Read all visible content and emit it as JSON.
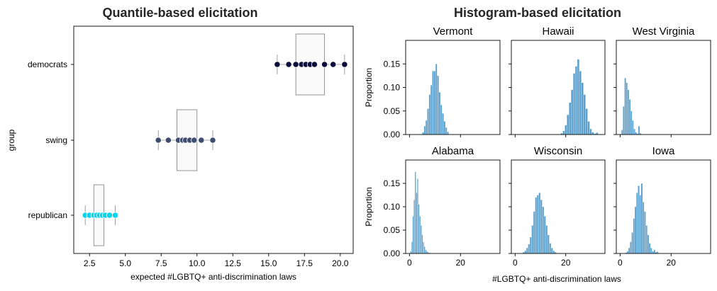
{
  "chart_data": [
    {
      "type": "box",
      "title": "Quantile-based elicitation",
      "xlabel": "expected #LGBTQ+ anti-discrimination laws",
      "ylabel": "group",
      "xlim": [
        1.4,
        20.9
      ],
      "xticks": [
        "2.5",
        "5.0",
        "7.5",
        "10.0",
        "12.5",
        "15.0",
        "17.5",
        "20.0"
      ],
      "xtick_values": [
        2.5,
        5.0,
        7.5,
        10.0,
        12.5,
        15.0,
        17.5,
        20.0
      ],
      "categories": [
        "democrats",
        "swing",
        "republican"
      ],
      "groups": [
        {
          "name": "democrats",
          "whisker_low": 15.6,
          "q1": 16.9,
          "q3": 18.9,
          "whisker_high": 20.3,
          "points": [
            15.6,
            16.4,
            16.9,
            17.3,
            17.6,
            17.9,
            18.2,
            18.9,
            19.5,
            20.3
          ],
          "color": "#0d0d3b"
        },
        {
          "name": "swing",
          "whisker_low": 7.3,
          "q1": 8.6,
          "q3": 10.0,
          "whisker_high": 11.1,
          "points": [
            7.3,
            8.0,
            8.7,
            9.0,
            9.2,
            9.5,
            9.8,
            10.3,
            11.1
          ],
          "color": "#3f4e6e"
        },
        {
          "name": "republican",
          "whisker_low": 2.2,
          "q1": 2.8,
          "q3": 3.5,
          "whisker_high": 4.3,
          "points": [
            2.2,
            2.5,
            2.8,
            3.0,
            3.2,
            3.4,
            3.6,
            3.9,
            4.3
          ],
          "color": "#00d7ef"
        }
      ]
    },
    {
      "type": "histogram",
      "title": "Histogram-based elicitation",
      "xlabel": "#LGBTQ+ anti-discrimination laws",
      "ylabel": "Proportion",
      "xlim": [
        -1.5,
        35.5
      ],
      "ylim": [
        0,
        0.2
      ],
      "xticks": [
        "0",
        "20"
      ],
      "xtick_values": [
        0,
        20
      ],
      "yticks": [
        "0.00",
        "0.05",
        "0.10",
        "0.15"
      ],
      "ytick_values": [
        0,
        0.05,
        0.1,
        0.15
      ],
      "bar_color": "#5b9fcc",
      "panels": [
        {
          "name": "Vermont",
          "bin_start": 5,
          "bin_width": 0.65,
          "values": [
            0.005,
            0.018,
            0.03,
            0.055,
            0.085,
            0.105,
            0.135,
            0.135,
            0.15,
            0.125,
            0.09,
            0.063,
            0.045,
            0.028,
            0.015,
            0.006
          ]
        },
        {
          "name": "Hawaii",
          "bin_start": 18,
          "bin_width": 0.82,
          "values": [
            0.003,
            0.008,
            0.02,
            0.042,
            0.068,
            0.095,
            0.13,
            0.145,
            0.16,
            0.135,
            0.11,
            0.085,
            0.055,
            0.028,
            0.012,
            0.005,
            0.002,
            0.004
          ]
        },
        {
          "name": "West Virginia",
          "bin_start": 0.5,
          "bin_width": 0.6,
          "values": [
            0.01,
            0.06,
            0.12,
            0.11,
            0.095,
            0.075,
            0.05,
            0.03,
            0.012,
            0.005,
            0.002,
            0.018,
            0.003
          ]
        },
        {
          "name": "Alabama",
          "bin_start": 0.3,
          "bin_width": 0.45,
          "values": [
            0.005,
            0.025,
            0.08,
            0.115,
            0.175,
            0.13,
            0.16,
            0.105,
            0.08,
            0.06,
            0.04,
            0.025,
            0.015,
            0.008,
            0.005,
            0.003,
            0.002,
            0.001
          ]
        },
        {
          "name": "Wisconsin",
          "bin_start": 3,
          "bin_width": 0.7,
          "values": [
            0.003,
            0.006,
            0.012,
            0.02,
            0.035,
            0.06,
            0.09,
            0.12,
            0.125,
            0.13,
            0.115,
            0.1,
            0.08,
            0.06,
            0.04,
            0.022,
            0.012,
            0.006,
            0.003
          ]
        },
        {
          "name": "Iowa",
          "bin_start": 2,
          "bin_width": 0.62,
          "values": [
            0.002,
            0.005,
            0.012,
            0.025,
            0.045,
            0.075,
            0.1,
            0.13,
            0.145,
            0.125,
            0.15,
            0.11,
            0.09,
            0.06,
            0.04,
            0.022,
            0.012,
            0.005,
            0.008,
            0.003,
            0.004
          ]
        }
      ]
    }
  ]
}
